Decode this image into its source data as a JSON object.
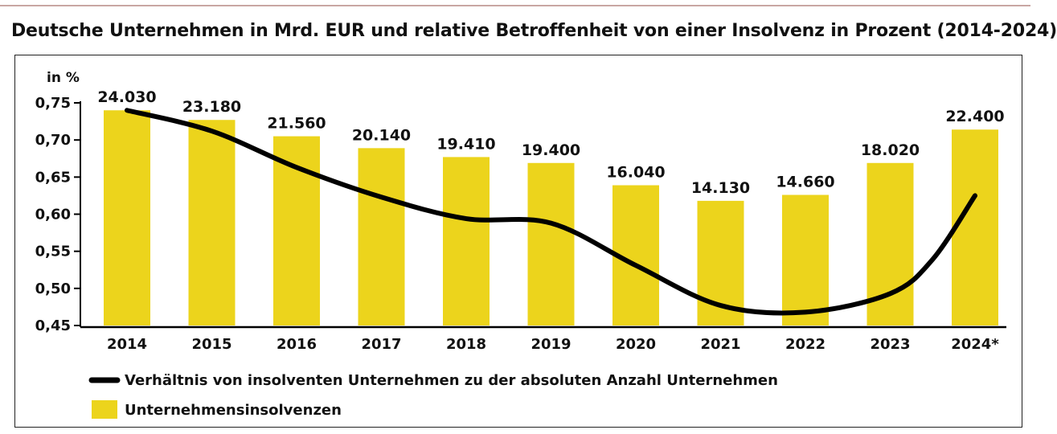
{
  "title": "Deutsche Unternehmen in Mrd. EUR und relative Betroffenheit von einer Insolvenz in Prozent (2014-2024)",
  "colors": {
    "bar": "#ecd41c",
    "line": "#000000",
    "axis": "#000000"
  },
  "chart_data": {
    "type": "bar",
    "title": "Deutsche Unternehmen in Mrd. EUR und relative Betroffenheit von einer Insolvenz in Prozent (2014-2024)",
    "ylabel": "in %",
    "ylim": [
      0.45,
      0.75
    ],
    "yticks": [
      "0,75",
      "0,70",
      "0,65",
      "0,60",
      "0,55",
      "0,50",
      "0,45"
    ],
    "ytick_values": [
      0.75,
      0.7,
      0.65,
      0.6,
      0.55,
      0.5,
      0.45
    ],
    "categories": [
      "2014",
      "2015",
      "2016",
      "2017",
      "2018",
      "2019",
      "2020",
      "2021",
      "2022",
      "2023",
      "2024*"
    ],
    "bar_series": {
      "name": "Unternehmensinsolvenzen",
      "axis_values": [
        0.74,
        0.727,
        0.705,
        0.689,
        0.677,
        0.669,
        0.639,
        0.618,
        0.626,
        0.669,
        0.714
      ],
      "labels": [
        "24.030",
        "23.180",
        "21.560",
        "20.140",
        "19.410",
        "19.400",
        "16.040",
        "14.130",
        "14.660",
        "18.020",
        "22.400"
      ]
    },
    "line_series": {
      "name": "Verhältnis von insolventen Unternehmen zu der absoluten Anzahl Unternehmen",
      "values": [
        0.74,
        0.712,
        0.663,
        0.623,
        0.594,
        0.588,
        0.531,
        0.477,
        0.468,
        0.493,
        0.539,
        0.625
      ],
      "x_positions": [
        0,
        1,
        2,
        3,
        4,
        5,
        6,
        7,
        8,
        9,
        9.5,
        10
      ]
    },
    "legend": [
      {
        "type": "line",
        "label": "Verhältnis von insolventen Unternehmen zu der absoluten Anzahl Unternehmen"
      },
      {
        "type": "bar",
        "label": "Unternehmensinsolvenzen"
      }
    ],
    "legend_position": "bottom-left",
    "grid": false
  }
}
